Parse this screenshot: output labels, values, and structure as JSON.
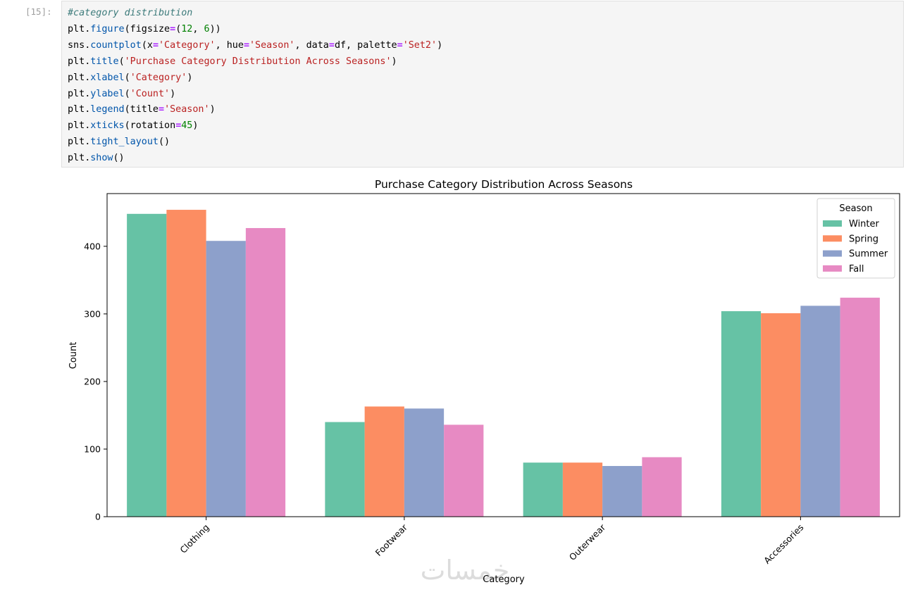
{
  "cell": {
    "prompt": "[15]:",
    "lines": [
      [
        [
          "c-com",
          "#category distribution"
        ]
      ],
      [
        [
          "c-var",
          "plt"
        ],
        [
          "",
          "."
        ],
        [
          "c-attr",
          "figure"
        ],
        [
          "",
          "(figsize"
        ],
        [
          "c-op",
          "="
        ],
        [
          "",
          "("
        ],
        [
          "c-num",
          "12"
        ],
        [
          "",
          ", "
        ],
        [
          "c-num",
          "6"
        ],
        [
          "",
          "))"
        ]
      ],
      [
        [
          "c-var",
          "sns"
        ],
        [
          "",
          "."
        ],
        [
          "c-attr",
          "countplot"
        ],
        [
          "",
          "(x"
        ],
        [
          "c-op",
          "="
        ],
        [
          "c-str",
          "'Category'"
        ],
        [
          "",
          ", hue"
        ],
        [
          "c-op",
          "="
        ],
        [
          "c-str",
          "'Season'"
        ],
        [
          "",
          ", data"
        ],
        [
          "c-op",
          "="
        ],
        [
          "",
          "df, palette"
        ],
        [
          "c-op",
          "="
        ],
        [
          "c-str",
          "'Set2'"
        ],
        [
          "",
          ")"
        ]
      ],
      [
        [
          "c-var",
          "plt"
        ],
        [
          "",
          "."
        ],
        [
          "c-attr",
          "title"
        ],
        [
          "",
          "("
        ],
        [
          "c-str",
          "'Purchase Category Distribution Across Seasons'"
        ],
        [
          "",
          ")"
        ]
      ],
      [
        [
          "c-var",
          "plt"
        ],
        [
          "",
          "."
        ],
        [
          "c-attr",
          "xlabel"
        ],
        [
          "",
          "("
        ],
        [
          "c-str",
          "'Category'"
        ],
        [
          "",
          ")"
        ]
      ],
      [
        [
          "c-var",
          "plt"
        ],
        [
          "",
          "."
        ],
        [
          "c-attr",
          "ylabel"
        ],
        [
          "",
          "("
        ],
        [
          "c-str",
          "'Count'"
        ],
        [
          "",
          ")"
        ]
      ],
      [
        [
          "c-var",
          "plt"
        ],
        [
          "",
          "."
        ],
        [
          "c-attr",
          "legend"
        ],
        [
          "",
          "(title"
        ],
        [
          "c-op",
          "="
        ],
        [
          "c-str",
          "'Season'"
        ],
        [
          "",
          ")"
        ]
      ],
      [
        [
          "c-var",
          "plt"
        ],
        [
          "",
          "."
        ],
        [
          "c-attr",
          "xticks"
        ],
        [
          "",
          "(rotation"
        ],
        [
          "c-op",
          "="
        ],
        [
          "c-num",
          "45"
        ],
        [
          "",
          ")"
        ]
      ],
      [
        [
          "c-var",
          "plt"
        ],
        [
          "",
          "."
        ],
        [
          "c-attr",
          "tight_layout"
        ],
        [
          "",
          "()"
        ]
      ],
      [
        [
          "c-var",
          "plt"
        ],
        [
          "",
          "."
        ],
        [
          "c-attr",
          "show"
        ],
        [
          "",
          "()"
        ]
      ]
    ]
  },
  "chart_data": {
    "type": "bar",
    "title": "Purchase Category Distribution Across Seasons",
    "xlabel": "Category",
    "ylabel": "Count",
    "categories": [
      "Clothing",
      "Footwear",
      "Outerwear",
      "Accessories"
    ],
    "series": [
      {
        "name": "Winter",
        "color": "#66c2a5",
        "values": [
          448,
          140,
          80,
          304
        ]
      },
      {
        "name": "Spring",
        "color": "#fc8d62",
        "values": [
          454,
          163,
          80,
          301
        ]
      },
      {
        "name": "Summer",
        "color": "#8da0cb",
        "values": [
          408,
          160,
          75,
          312
        ]
      },
      {
        "name": "Fall",
        "color": "#e78ac3",
        "values": [
          427,
          136,
          88,
          324
        ]
      }
    ],
    "ylim": [
      0,
      478
    ],
    "yticks": [
      0,
      100,
      200,
      300,
      400
    ],
    "legend_title": "Season",
    "legend_position": "upper right",
    "tick_rotation": 45,
    "grid": false
  },
  "watermark": "خمسات"
}
